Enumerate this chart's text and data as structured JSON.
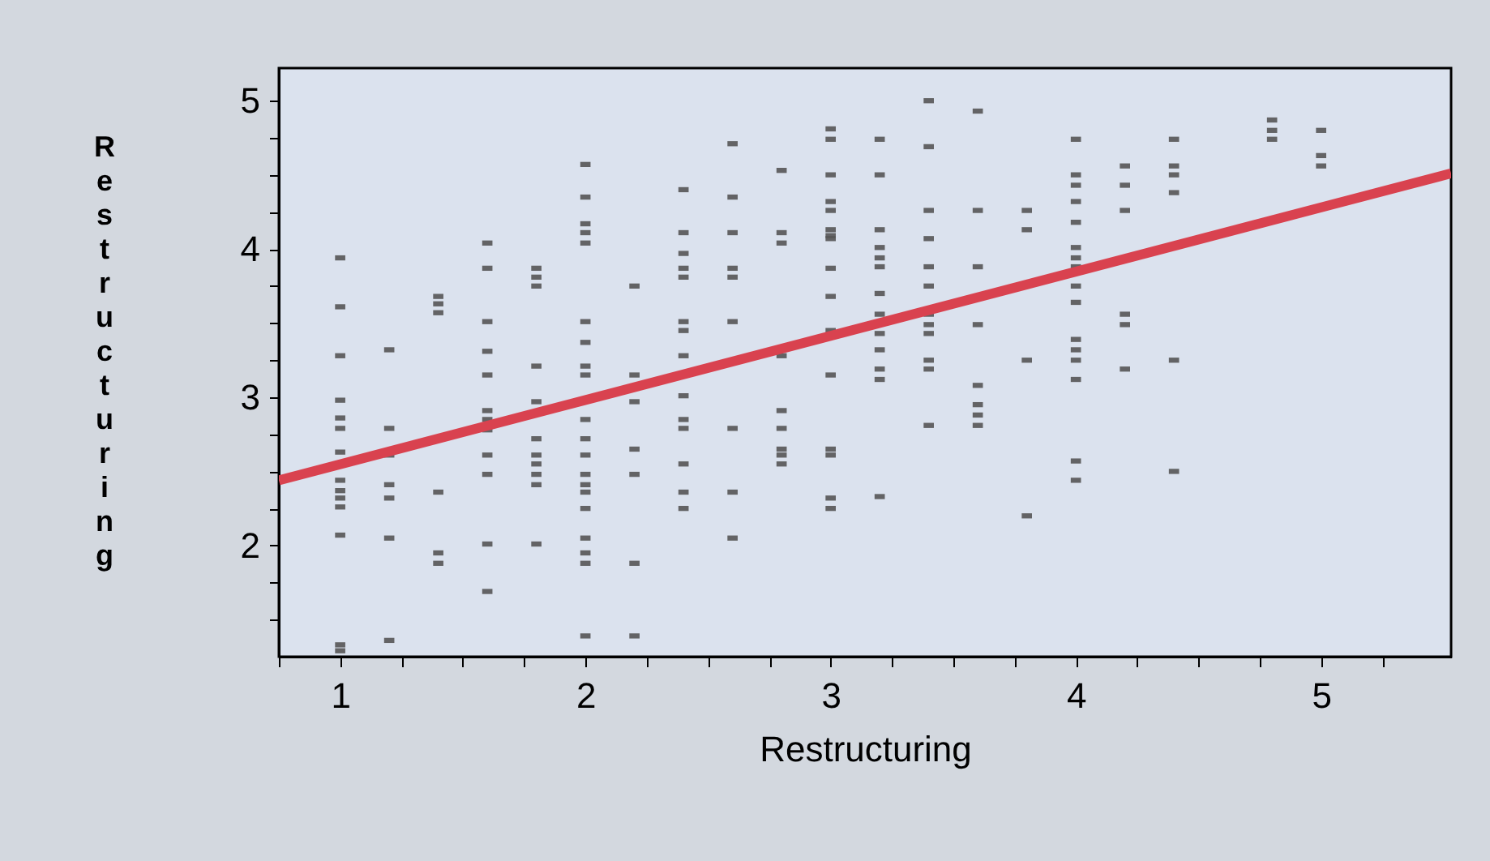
{
  "chart_data": {
    "type": "scatter",
    "xlabel": "Restructuring",
    "ylabel": "Restructuring",
    "xlim": [
      0.75,
      5.53
    ],
    "ylim": [
      1.25,
      5.22
    ],
    "xticks": [
      {
        "value": 0.75,
        "label": null
      },
      1,
      {
        "value": 1.25,
        "label": null
      },
      {
        "value": 1.5,
        "label": null
      },
      {
        "value": 1.75,
        "label": null
      },
      2,
      {
        "value": 2.25,
        "label": null
      },
      {
        "value": 2.5,
        "label": null
      },
      {
        "value": 2.75,
        "label": null
      },
      3,
      {
        "value": 3.25,
        "label": null
      },
      {
        "value": 3.5,
        "label": null
      },
      {
        "value": 3.75,
        "label": null
      },
      4,
      {
        "value": 4.25,
        "label": null
      },
      {
        "value": 4.5,
        "label": null
      },
      {
        "value": 4.75,
        "label": null
      },
      5,
      {
        "value": 5.25,
        "label": null
      }
    ],
    "yticks": [
      {
        "value": 1.5,
        "label": null
      },
      {
        "value": 1.75,
        "label": null
      },
      2,
      {
        "value": 2.25,
        "label": null
      },
      {
        "value": 2.5,
        "label": null
      },
      {
        "value": 2.75,
        "label": null
      },
      3,
      {
        "value": 3.25,
        "label": null
      },
      {
        "value": 3.5,
        "label": null
      },
      {
        "value": 3.75,
        "label": null
      },
      4,
      {
        "value": 4.25,
        "label": null
      },
      {
        "value": 4.5,
        "label": null
      },
      {
        "value": 4.75,
        "label": null
      },
      5
    ],
    "grid": false,
    "series": [
      {
        "color": "#555555",
        "x": [
          1,
          1,
          1,
          1,
          1,
          1,
          1,
          1,
          1,
          1,
          1,
          1,
          1,
          1,
          1.2,
          1.2,
          1.2,
          1.2,
          1.2,
          1.2,
          1.2,
          1.4,
          1.4,
          1.4,
          1.4,
          1.4,
          1.4,
          1.6,
          1.6,
          1.6,
          1.6,
          1.6,
          1.6,
          1.6,
          1.6,
          1.6,
          1.6,
          1.6,
          1.6,
          1.8,
          1.8,
          1.8,
          1.8,
          1.8,
          1.8,
          1.8,
          1.8,
          1.8,
          1.8,
          1.8,
          2,
          2,
          2,
          2,
          2,
          2,
          2,
          2,
          2,
          2,
          2,
          2,
          2,
          2,
          2,
          2,
          2,
          2,
          2,
          2,
          2.2,
          2.2,
          2.2,
          2.2,
          2.2,
          2.2,
          2.2,
          2.4,
          2.4,
          2.4,
          2.4,
          2.4,
          2.4,
          2.4,
          2.4,
          2.4,
          2.4,
          2.4,
          2.4,
          2.4,
          2.4,
          2.6,
          2.6,
          2.6,
          2.6,
          2.6,
          2.6,
          2.6,
          2.6,
          2.6,
          2.8,
          2.8,
          2.8,
          2.8,
          2.8,
          2.8,
          2.8,
          2.8,
          2.8,
          3,
          3,
          3,
          3,
          3,
          3,
          3,
          3,
          3,
          3,
          3,
          3,
          3,
          3,
          3,
          3,
          3.2,
          3.2,
          3.2,
          3.2,
          3.2,
          3.2,
          3.2,
          3.2,
          3.2,
          3.2,
          3.2,
          3.2,
          3.2,
          3.4,
          3.4,
          3.4,
          3.4,
          3.4,
          3.4,
          3.4,
          3.4,
          3.4,
          3.4,
          3.4,
          3.4,
          3.6,
          3.6,
          3.6,
          3.6,
          3.6,
          3.6,
          3.6,
          3.6,
          3.8,
          3.8,
          3.8,
          3.8,
          4,
          4,
          4,
          4,
          4,
          4,
          4,
          4,
          4,
          4,
          4,
          4,
          4,
          4,
          4,
          4,
          4.2,
          4.2,
          4.2,
          4.2,
          4.2,
          4.2,
          4.4,
          4.4,
          4.4,
          4.4,
          4.4,
          4.4,
          4.8,
          4.8,
          4.8,
          5,
          5,
          5
        ],
        "values": [
          3.94,
          3.61,
          3.28,
          2.98,
          2.86,
          2.79,
          2.63,
          2.44,
          2.37,
          2.32,
          2.26,
          2.07,
          1.33,
          1.29,
          3.32,
          2.79,
          2.61,
          2.41,
          2.32,
          2.05,
          1.36,
          3.68,
          3.63,
          3.57,
          2.36,
          1.95,
          1.88,
          4.04,
          3.87,
          3.51,
          3.31,
          3.15,
          2.91,
          2.85,
          2.78,
          2.61,
          2.48,
          2.01,
          1.69,
          3.87,
          3.81,
          3.75,
          3.21,
          2.97,
          2.72,
          2.61,
          2.55,
          2.48,
          2.41,
          2.01,
          4.57,
          4.35,
          4.17,
          4.11,
          4.04,
          3.51,
          3.37,
          3.21,
          3.15,
          2.85,
          2.72,
          2.61,
          2.48,
          2.41,
          2.36,
          2.25,
          2.05,
          1.95,
          1.88,
          1.39,
          3.75,
          3.15,
          2.97,
          2.65,
          2.48,
          1.88,
          1.39,
          4.4,
          4.11,
          3.97,
          3.87,
          3.81,
          3.51,
          3.45,
          3.28,
          3.01,
          2.85,
          2.79,
          2.55,
          2.36,
          2.25,
          4.71,
          4.35,
          4.11,
          3.87,
          3.81,
          3.51,
          2.79,
          2.36,
          2.05,
          4.53,
          4.11,
          4.04,
          3.28,
          2.91,
          2.79,
          2.65,
          2.61,
          2.55,
          4.81,
          4.74,
          4.5,
          4.32,
          4.26,
          4.13,
          4.09,
          4.07,
          3.87,
          3.68,
          3.45,
          3.15,
          2.65,
          2.61,
          2.32,
          2.25,
          4.74,
          4.5,
          4.13,
          4.01,
          3.94,
          3.88,
          3.7,
          3.56,
          3.43,
          3.32,
          3.19,
          3.12,
          2.33,
          5.0,
          4.69,
          4.26,
          4.07,
          3.88,
          3.75,
          3.56,
          3.49,
          3.43,
          3.25,
          3.19,
          2.81,
          4.93,
          4.26,
          3.88,
          3.49,
          3.08,
          2.95,
          2.88,
          2.81,
          4.26,
          4.13,
          3.25,
          2.2,
          4.74,
          4.5,
          4.43,
          4.32,
          4.18,
          4.01,
          3.94,
          3.88,
          3.75,
          3.64,
          3.39,
          3.32,
          3.25,
          3.12,
          2.57,
          2.44,
          4.56,
          4.43,
          4.26,
          3.56,
          3.49,
          3.19,
          4.74,
          4.56,
          4.5,
          4.38,
          3.25,
          2.5,
          4.87,
          4.8,
          4.74,
          4.8,
          4.63,
          4.56
        ]
      },
      {
        "type": "line",
        "color": "#d9424f",
        "x": [
          0.75,
          5.53
        ],
        "values": [
          2.44,
          4.51
        ]
      }
    ]
  }
}
